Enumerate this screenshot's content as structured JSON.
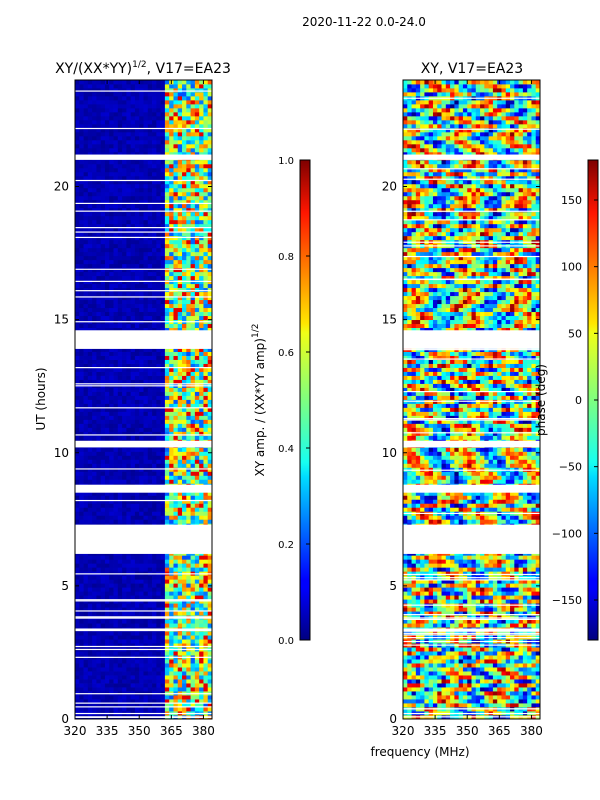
{
  "suptitle": "2020-11-22 0.0-24.0",
  "colors": {
    "low": "#00007f",
    "high": "#7f0000",
    "gap": "#ffffff"
  },
  "chart_data": [
    {
      "type": "heatmap",
      "title": "XY/(XX*YY)",
      "title_sup": "1/2",
      "title_suffix": ", V17=EA23",
      "xlabel": "",
      "ylabel": "UT (hours)",
      "xlim": [
        320,
        384
      ],
      "ylim": [
        0,
        24
      ],
      "xticks": [
        "320",
        "335",
        "350",
        "365",
        "380"
      ],
      "xtick_values": [
        320,
        335,
        350,
        365,
        380
      ],
      "yticks": [
        "0",
        "5",
        "10",
        "15",
        "20"
      ],
      "ytick_values": [
        0,
        5,
        10,
        15,
        20
      ],
      "colorbar": {
        "label": "XY amp. / (XX*YY amp)",
        "label_sup": "1/2",
        "range": [
          0,
          1
        ],
        "ticks": [
          "0.0",
          "0.2",
          "0.4",
          "0.6",
          "0.8",
          "1.0"
        ],
        "tick_values": [
          0,
          0.2,
          0.4,
          0.6,
          0.8,
          1.0
        ]
      },
      "gaps_hours": [
        [
          6.2,
          7.3
        ],
        [
          13.9,
          14.6
        ],
        [
          8.5,
          8.8
        ],
        [
          10.2,
          10.45
        ],
        [
          3.3,
          3.4
        ],
        [
          21.0,
          21.2
        ]
      ]
    },
    {
      "type": "heatmap",
      "title": "XY, V17=EA23",
      "xlabel": "frequency (MHz)",
      "ylabel": "",
      "xlim": [
        320,
        384
      ],
      "ylim": [
        0,
        24
      ],
      "xticks": [
        "320",
        "335",
        "350",
        "365",
        "380"
      ],
      "xtick_values": [
        320,
        335,
        350,
        365,
        380
      ],
      "yticks": [
        "0",
        "5",
        "10",
        "15",
        "20"
      ],
      "ytick_values": [
        0,
        5,
        10,
        15,
        20
      ],
      "colorbar": {
        "label": "phase (deg)",
        "range": [
          -180,
          180
        ],
        "ticks": [
          "−150",
          "−100",
          "−50",
          "0",
          "50",
          "100",
          "150"
        ],
        "tick_values": [
          -150,
          -100,
          -50,
          0,
          50,
          100,
          150
        ]
      },
      "gaps_hours": [
        [
          6.2,
          7.3
        ],
        [
          13.9,
          14.6
        ],
        [
          8.5,
          8.8
        ],
        [
          10.2,
          10.45
        ],
        [
          3.3,
          3.4
        ],
        [
          21.0,
          21.2
        ]
      ]
    }
  ]
}
